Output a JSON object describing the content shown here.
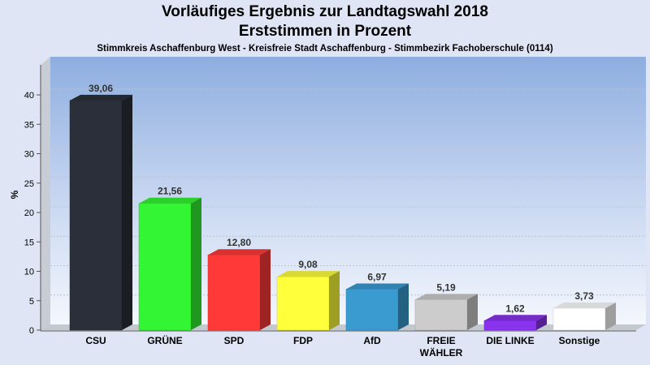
{
  "chart_data": {
    "type": "bar",
    "title": "Vorläufiges Ergebnis zur Landtagswahl 2018",
    "subtitle": "Erststimmen in Prozent",
    "caption": "Stimmkreis Aschaffenburg West - Kreisfreie Stadt Aschaffenburg - Stimmbezirk Fachoberschule (0114)",
    "ylabel": "%",
    "ylim": [
      0,
      45
    ],
    "yticks": [
      0,
      5,
      10,
      15,
      20,
      25,
      30,
      35,
      40
    ],
    "grid": true,
    "categories": [
      {
        "label": "CSU",
        "label2": ""
      },
      {
        "label": "GRÜNE",
        "label2": ""
      },
      {
        "label": "SPD",
        "label2": ""
      },
      {
        "label": "FDP",
        "label2": ""
      },
      {
        "label": "AfD",
        "label2": ""
      },
      {
        "label": "FREIE",
        "label2": "WÄHLER"
      },
      {
        "label": "DIE LINKE",
        "label2": ""
      },
      {
        "label": "Sonstige",
        "label2": ""
      }
    ],
    "values": [
      39.06,
      21.56,
      12.8,
      9.08,
      6.97,
      5.19,
      1.62,
      3.73
    ],
    "value_labels": [
      "39,06",
      "21,56",
      "12,80",
      "9,08",
      "6,97",
      "5,19",
      "1,62",
      "3,73"
    ],
    "colors": [
      "#2a2f3a",
      "#33f533",
      "#ff3838",
      "#ffff3c",
      "#3a9bd0",
      "#cccccc",
      "#8a33ee",
      "#ffffff"
    ]
  }
}
